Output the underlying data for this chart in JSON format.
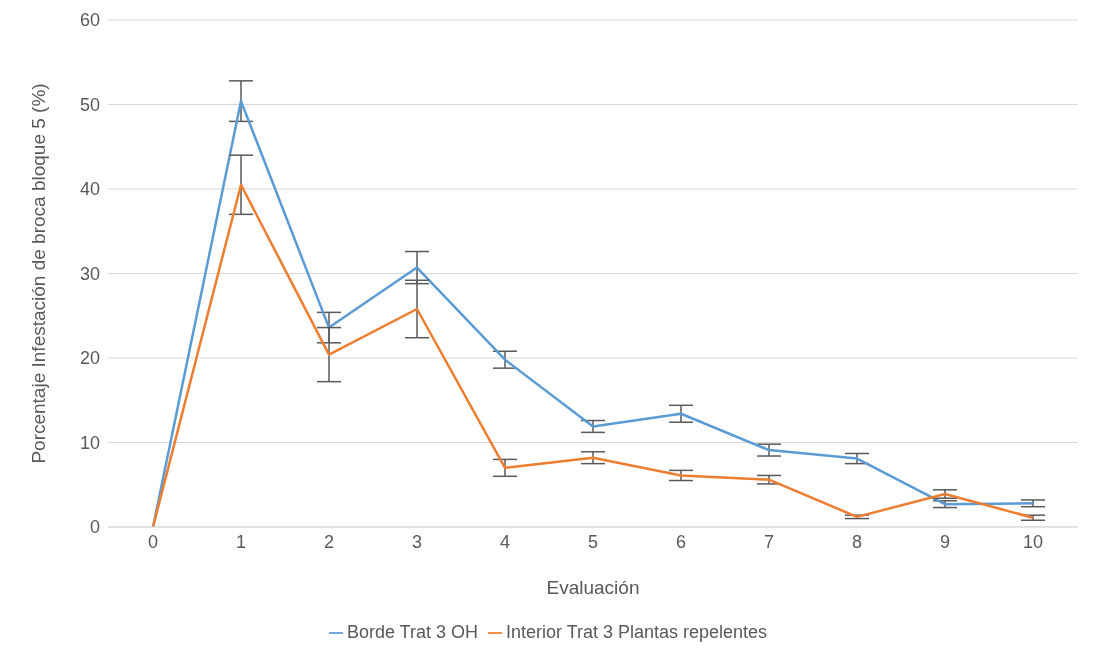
{
  "chart_data": {
    "type": "line",
    "xlabel": "Evaluación",
    "ylabel": "Porcentaje Infestación de broca bloque 5 (%)",
    "categories": [
      "0",
      "1",
      "2",
      "3",
      "4",
      "5",
      "6",
      "7",
      "8",
      "9",
      "10"
    ],
    "series": [
      {
        "name": "Borde Trat 3 OH",
        "color": "#5b9bd5",
        "values": [
          0,
          50.4,
          23.6,
          30.7,
          19.8,
          11.9,
          13.4,
          9.1,
          8.1,
          2.7,
          2.8
        ],
        "errors": [
          0,
          2.4,
          1.8,
          1.9,
          1,
          0.7,
          1,
          0.7,
          0.6,
          0.4,
          0.4
        ]
      },
      {
        "name": "Interior Trat 3 Plantas repelentes",
        "color": "#ed7d31",
        "values": [
          0,
          40.5,
          20.4,
          25.8,
          7,
          8.2,
          6.1,
          5.6,
          1.2,
          3.9,
          1.1
        ],
        "errors": [
          0,
          3.5,
          3.2,
          3.4,
          1,
          0.7,
          0.6,
          0.5,
          0.2,
          0.5,
          0.3
        ]
      }
    ],
    "ylim": [
      0,
      60
    ],
    "yticks": [
      0,
      10,
      20,
      30,
      40,
      50,
      60
    ],
    "grid": "y",
    "legend": "bottom",
    "marker": "none",
    "line_style": "solid"
  }
}
